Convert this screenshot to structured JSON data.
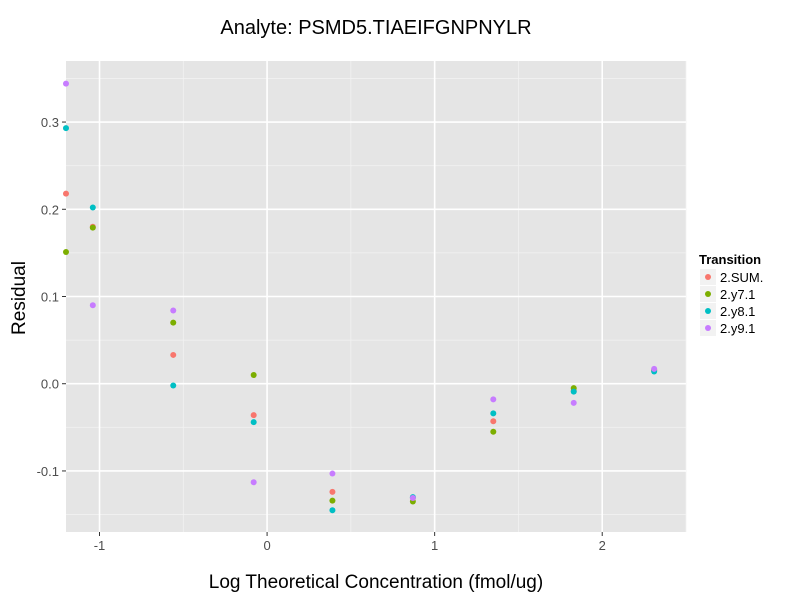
{
  "chart_data": {
    "type": "scatter",
    "title": "Analyte: PSMD5.TIAEIFGNPNYLR",
    "xlabel": "Log Theoretical Concentration (fmol/ug)",
    "ylabel": "Residual",
    "xlim": [
      -1.2,
      2.5
    ],
    "ylim": [
      -0.17,
      0.37
    ],
    "x_ticks": [
      -1,
      0,
      1,
      2
    ],
    "y_ticks": [
      -0.1,
      0.0,
      0.1,
      0.2,
      0.3
    ],
    "x_tick_labels": [
      "-1",
      "0",
      "1",
      "2"
    ],
    "y_tick_labels": [
      "-0.1",
      "0.0",
      "0.1",
      "0.2",
      "0.3"
    ],
    "grid": true,
    "legend_position": "right",
    "legend_title": "Transition",
    "series": [
      {
        "name": "2.SUM.",
        "color": "#F8766D",
        "x": [
          -1.2,
          -1.04,
          -0.56,
          -0.08,
          0.39,
          0.87,
          1.35,
          1.83,
          2.31
        ],
        "y": [
          0.218,
          0.18,
          0.033,
          -0.036,
          -0.124,
          -0.131,
          -0.043,
          -0.008,
          0.016
        ]
      },
      {
        "name": "2.y7.1",
        "color": "#7CAE00",
        "x": [
          -1.2,
          -1.04,
          -0.56,
          -0.08,
          0.39,
          0.87,
          1.35,
          1.83,
          2.31
        ],
        "y": [
          0.151,
          0.179,
          0.07,
          0.01,
          -0.134,
          -0.135,
          -0.055,
          -0.005,
          0.015
        ]
      },
      {
        "name": "2.y8.1",
        "color": "#00BFC4",
        "x": [
          -1.2,
          -1.04,
          -0.56,
          -0.08,
          0.39,
          0.87,
          1.35,
          1.83,
          2.31
        ],
        "y": [
          0.293,
          0.202,
          -0.002,
          -0.044,
          -0.145,
          -0.13,
          -0.034,
          -0.009,
          0.014
        ]
      },
      {
        "name": "2.y9.1",
        "color": "#C77CFF",
        "x": [
          -1.2,
          -1.04,
          -0.56,
          -0.08,
          0.39,
          0.87,
          1.35,
          1.83,
          2.31
        ],
        "y": [
          0.344,
          0.09,
          0.084,
          -0.113,
          -0.103,
          -0.131,
          -0.018,
          -0.022,
          0.017
        ]
      }
    ]
  }
}
